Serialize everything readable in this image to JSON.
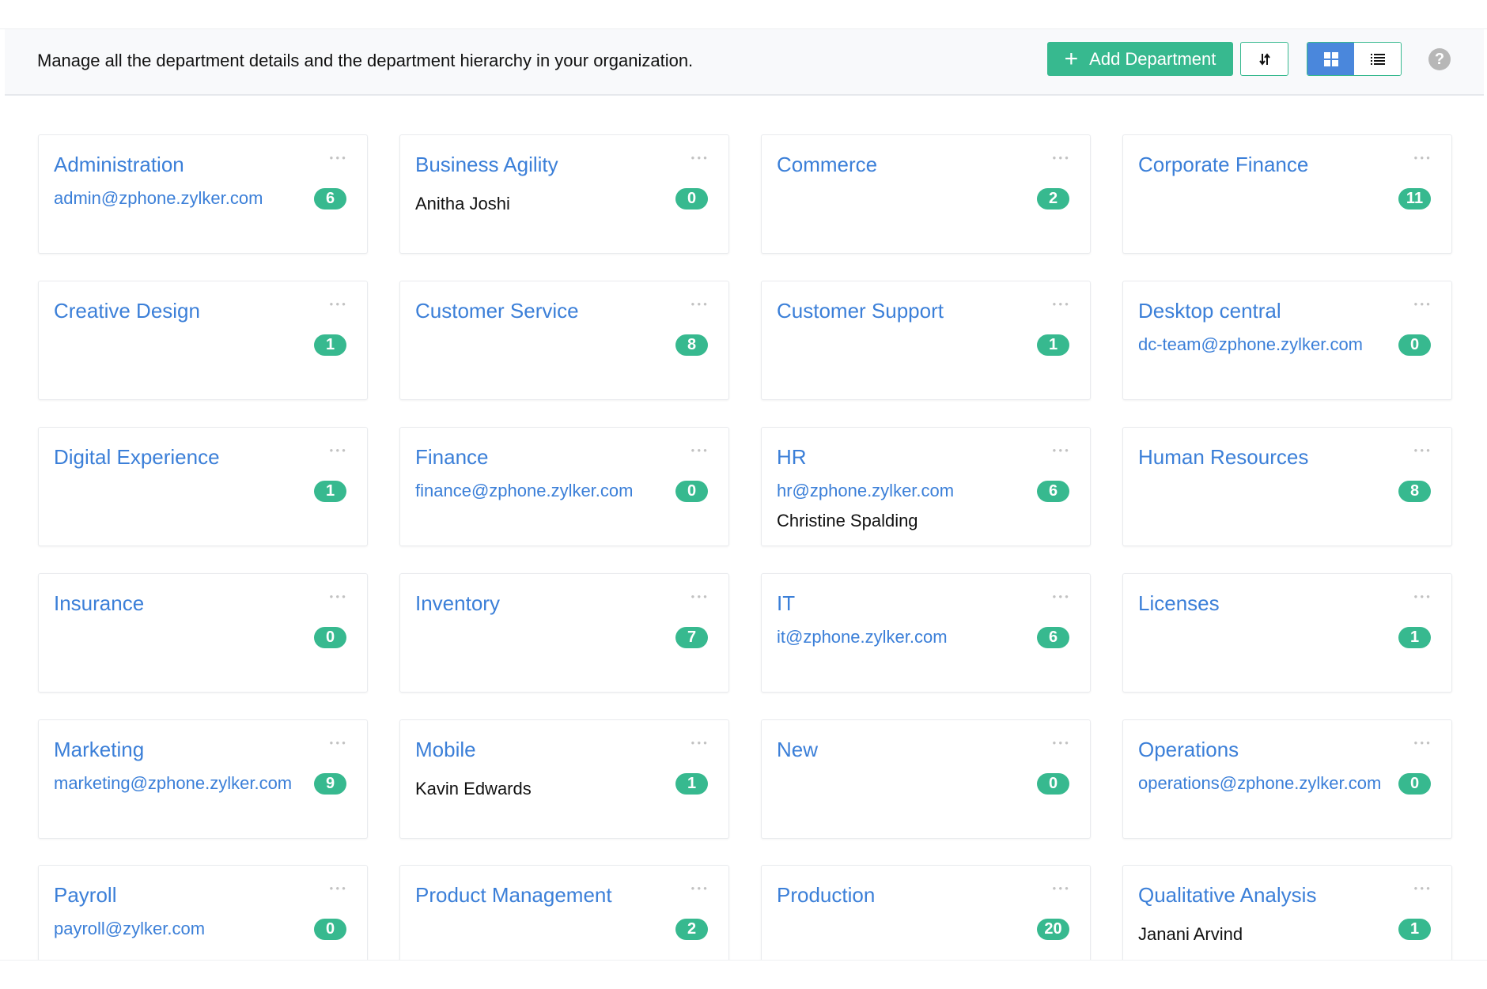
{
  "header": {
    "description": "Manage all the department details and the department hierarchy in your organization.",
    "add_button_label": "Add Department",
    "add_icon": "plus-icon",
    "sort_icon": "sort-arrows-icon",
    "grid_view_icon": "grid-icon",
    "list_view_icon": "list-icon",
    "help_icon": "question-icon",
    "help_label": "?",
    "active_view": "grid"
  },
  "colors": {
    "accent": "#37b98f",
    "link": "#3b7fd8",
    "active_toggle": "#4a87dc"
  },
  "departments": [
    {
      "name": "Administration",
      "email": "admin@zphone.zylker.com",
      "count": "6"
    },
    {
      "name": "Business Agility",
      "head": "Anitha Joshi",
      "count": "0"
    },
    {
      "name": "Commerce",
      "count": "2"
    },
    {
      "name": "Corporate Finance",
      "count": "11"
    },
    {
      "name": "Creative Design",
      "count": "1"
    },
    {
      "name": "Customer Service",
      "count": "8"
    },
    {
      "name": "Customer Support",
      "count": "1"
    },
    {
      "name": "Desktop central",
      "email": "dc-team@zphone.zylker.com",
      "count": "0"
    },
    {
      "name": "Digital Experience",
      "count": "1"
    },
    {
      "name": "Finance",
      "email": "finance@zphone.zylker.com",
      "count": "0"
    },
    {
      "name": "HR",
      "email": "hr@zphone.zylker.com",
      "head": "Christine Spalding",
      "count": "6"
    },
    {
      "name": "Human Resources",
      "count": "8"
    },
    {
      "name": "Insurance",
      "count": "0"
    },
    {
      "name": "Inventory",
      "count": "7"
    },
    {
      "name": "IT",
      "email": "it@zphone.zylker.com",
      "count": "6"
    },
    {
      "name": "Licenses",
      "count": "1"
    },
    {
      "name": "Marketing",
      "email": "marketing@zphone.zylker.com",
      "count": "9"
    },
    {
      "name": "Mobile",
      "head": "Kavin Edwards",
      "count": "1"
    },
    {
      "name": "New",
      "count": "0"
    },
    {
      "name": "Operations",
      "email": "operations@zphone.zylker.com",
      "count": "0"
    },
    {
      "name": "Payroll",
      "email": "payroll@zylker.com",
      "count": "0"
    },
    {
      "name": "Product Management",
      "count": "2"
    },
    {
      "name": "Production",
      "count": "20"
    },
    {
      "name": "Qualitative Analysis",
      "head": "Janani Arvind",
      "count": "1"
    }
  ]
}
